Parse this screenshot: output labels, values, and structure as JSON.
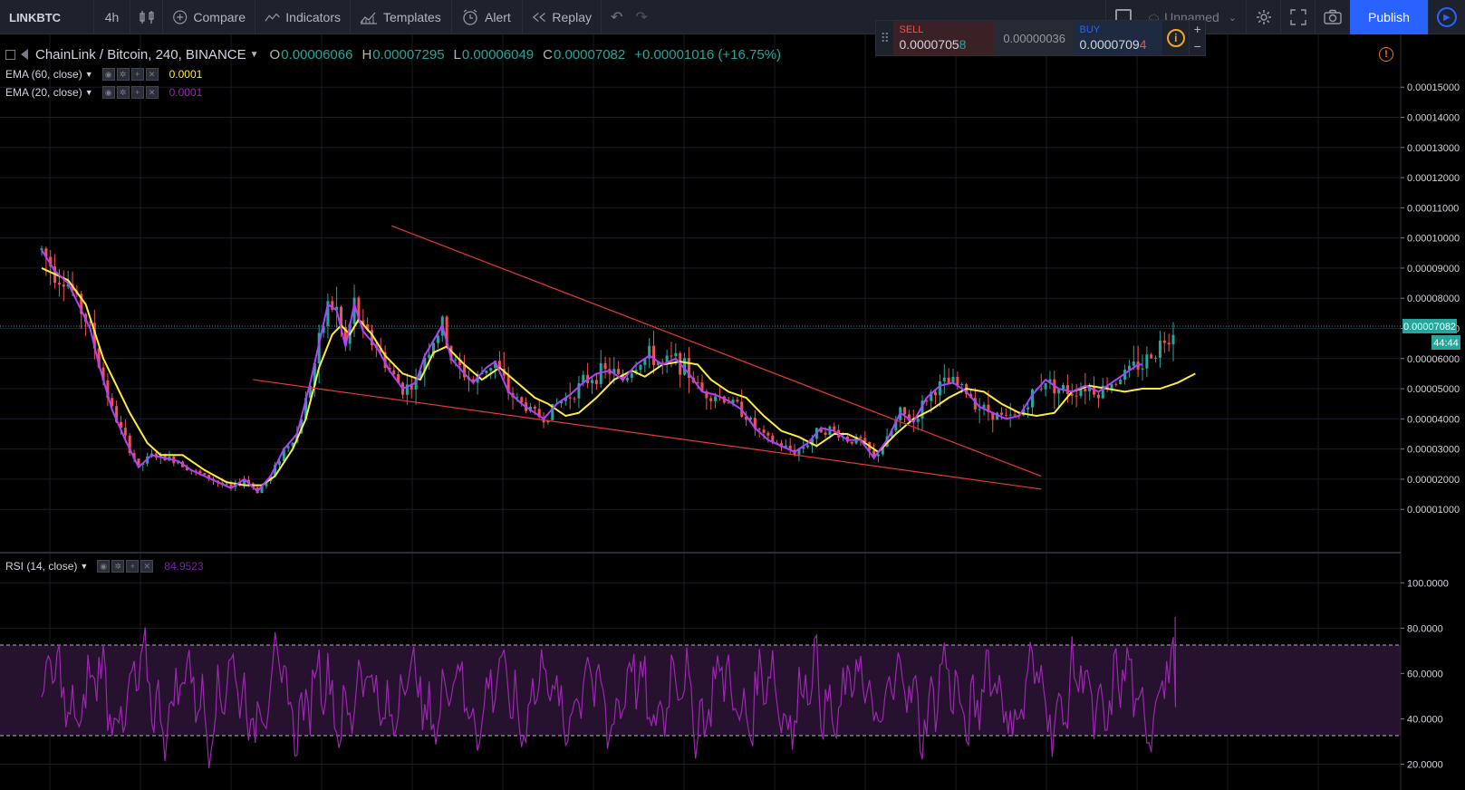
{
  "toolbar": {
    "symbol": "LINKBTC",
    "interval": "4h",
    "compare": "Compare",
    "indicators": "Indicators",
    "templates": "Templates",
    "alert": "Alert",
    "replay": "Replay",
    "layout_name": "Unnamed",
    "publish": "Publish"
  },
  "trade": {
    "sell_label": "SELL",
    "sell_main": "0.0000705",
    "sell_last": "8",
    "spread": "0.00000036",
    "buy_label": "BUY",
    "buy_main": "0.0000709",
    "buy_last": "4",
    "plus": "+",
    "minus": "−"
  },
  "legend": {
    "title": "ChainLink / Bitcoin, 240, BINANCE",
    "o_label": "O",
    "o": "0.00006066",
    "h_label": "H",
    "h": "0.00007295",
    "l_label": "L",
    "l": "0.00006049",
    "c_label": "C",
    "c": "0.00007082",
    "change": "+0.00001016 (+16.75%)"
  },
  "studies": [
    {
      "name": "EMA (60, close)",
      "value": "0.0001",
      "color": "#ffeb3b"
    },
    {
      "name": "EMA (20, close)",
      "value": "0.0001",
      "color": "#9c27b0"
    }
  ],
  "rsi": {
    "name": "RSI (14, close)",
    "value": "84.9523",
    "color": "#9c27b0"
  },
  "colors": {
    "background": "#000000",
    "up": "#26a69a",
    "down": "#ef5350",
    "ema60": "#ffeb3b",
    "ema20": "#b040ff",
    "trendline": "#e53935",
    "rsi": "#9c27b0",
    "last_price": "#26a69a",
    "accent": "#2962ff"
  },
  "price_axis": {
    "ticks": [
      "0.00015000",
      "0.00014000",
      "0.00013000",
      "0.00012000",
      "0.00011000",
      "0.00010000",
      "0.00009000",
      "0.00008000",
      "0.00007000",
      "0.00006000",
      "0.00005000",
      "0.00004000",
      "0.00003000",
      "0.00002000",
      "0.00001000"
    ],
    "last_price": "0.00007082",
    "countdown": "44:44"
  },
  "rsi_axis": {
    "ticks": [
      "100.0000",
      "80.0000",
      "60.0000",
      "40.0000",
      "20.0000"
    ],
    "upper_band": 70,
    "lower_band": 30
  },
  "chart_data": {
    "type": "line",
    "price_ylim": [
      4.65e-06,
      0.00015638
    ],
    "rsi_ylim": [
      13.4,
      107.3
    ],
    "ema60": [
      [
        0,
        9e-05
      ],
      [
        6,
        8.6e-05
      ],
      [
        10,
        7.8e-05
      ],
      [
        14,
        6e-05
      ],
      [
        20,
        4.2e-05
      ],
      [
        24,
        3.2e-05
      ],
      [
        27,
        2.8e-05
      ],
      [
        32,
        2.8e-05
      ],
      [
        37,
        2.3e-05
      ],
      [
        42,
        1.9e-05
      ],
      [
        46,
        1.8e-05
      ],
      [
        50,
        1.8e-05
      ],
      [
        53,
        2.1e-05
      ],
      [
        57,
        3e-05
      ],
      [
        60,
        4e-05
      ],
      [
        63,
        5.7e-05
      ],
      [
        66,
        6.8e-05
      ],
      [
        68,
        7.1e-05
      ],
      [
        70,
        6.8e-05
      ],
      [
        72,
        7.3e-05
      ],
      [
        75,
        6.8e-05
      ],
      [
        78,
        6.1e-05
      ],
      [
        82,
        5.5e-05
      ],
      [
        86,
        5.3e-05
      ],
      [
        89,
        6.2e-05
      ],
      [
        92,
        6.4e-05
      ],
      [
        96,
        5.8e-05
      ],
      [
        100,
        5.3e-05
      ],
      [
        104,
        5.7e-05
      ],
      [
        108,
        5.2e-05
      ],
      [
        112,
        4.7e-05
      ],
      [
        115,
        4.5e-05
      ],
      [
        119,
        4.1e-05
      ],
      [
        122,
        4.2e-05
      ],
      [
        126,
        4.7e-05
      ],
      [
        130,
        5.3e-05
      ],
      [
        134,
        5.6e-05
      ],
      [
        137,
        5.4e-05
      ],
      [
        141,
        5.8e-05
      ],
      [
        145,
        5.9e-05
      ],
      [
        149,
        5.8e-05
      ],
      [
        152,
        5.3e-05
      ],
      [
        156,
        4.9e-05
      ],
      [
        160,
        4.7e-05
      ],
      [
        164,
        4.1e-05
      ],
      [
        168,
        3.6e-05
      ],
      [
        172,
        3.4e-05
      ],
      [
        176,
        3.1e-05
      ],
      [
        180,
        3.5e-05
      ],
      [
        183,
        3.5e-05
      ],
      [
        186,
        3.3e-05
      ],
      [
        190,
        2.9e-05
      ],
      [
        194,
        3.5e-05
      ],
      [
        198,
        4e-05
      ],
      [
        202,
        4.3e-05
      ],
      [
        206,
        4.7e-05
      ],
      [
        210,
        5e-05
      ],
      [
        214,
        4.9e-05
      ],
      [
        218,
        4.5e-05
      ],
      [
        222,
        4.2e-05
      ],
      [
        226,
        4.1e-05
      ],
      [
        230,
        4.2e-05
      ],
      [
        234,
        4.9e-05
      ],
      [
        238,
        5.1e-05
      ],
      [
        242,
        5e-05
      ],
      [
        246,
        4.9e-05
      ],
      [
        250,
        5e-05
      ],
      [
        254,
        5e-05
      ],
      [
        258,
        5.2e-05
      ],
      [
        262,
        5.5e-05
      ]
    ],
    "ema20": [
      [
        0,
        9.6e-05
      ],
      [
        3,
        8.9e-05
      ],
      [
        6,
        8.5e-05
      ],
      [
        8,
        7.9e-05
      ],
      [
        11,
        7e-05
      ],
      [
        13,
        5.8e-05
      ],
      [
        16,
        4.3e-05
      ],
      [
        19,
        3.3e-05
      ],
      [
        22,
        2.4e-05
      ],
      [
        25,
        2.8e-05
      ],
      [
        28,
        2.7e-05
      ],
      [
        31,
        2.6e-05
      ],
      [
        34,
        2.3e-05
      ],
      [
        37,
        2.1e-05
      ],
      [
        40,
        1.9e-05
      ],
      [
        43,
        1.7e-05
      ],
      [
        46,
        2e-05
      ],
      [
        49,
        1.6e-05
      ],
      [
        52,
        2.1e-05
      ],
      [
        55,
        3e-05
      ],
      [
        58,
        3.5e-05
      ],
      [
        61,
        5.2e-05
      ],
      [
        63,
        6.5e-05
      ],
      [
        65,
        7.8e-05
      ],
      [
        67,
        7.6e-05
      ],
      [
        69,
        6.4e-05
      ],
      [
        71,
        7.8e-05
      ],
      [
        73,
        6.9e-05
      ],
      [
        76,
        6.4e-05
      ],
      [
        79,
        5.6e-05
      ],
      [
        82,
        5e-05
      ],
      [
        85,
        5.2e-05
      ],
      [
        87,
        6.1e-05
      ],
      [
        89,
        6.6e-05
      ],
      [
        91,
        7.1e-05
      ],
      [
        93,
        6e-05
      ],
      [
        96,
        5.5e-05
      ],
      [
        98,
        5.2e-05
      ],
      [
        101,
        5.7e-05
      ],
      [
        103,
        5.9e-05
      ],
      [
        106,
        4.9e-05
      ],
      [
        109,
        4.5e-05
      ],
      [
        112,
        4.2e-05
      ],
      [
        114,
        4e-05
      ],
      [
        117,
        4.5e-05
      ],
      [
        120,
        4.8e-05
      ],
      [
        123,
        5.2e-05
      ],
      [
        126,
        5.5e-05
      ],
      [
        129,
        5.6e-05
      ],
      [
        132,
        5.3e-05
      ],
      [
        135,
        5.8e-05
      ],
      [
        138,
        6.1e-05
      ],
      [
        141,
        5.8e-05
      ],
      [
        144,
        6e-05
      ],
      [
        147,
        5.5e-05
      ],
      [
        150,
        4.9e-05
      ],
      [
        153,
        4.8e-05
      ],
      [
        156,
        4.6e-05
      ],
      [
        159,
        4.3e-05
      ],
      [
        162,
        3.7e-05
      ],
      [
        165,
        3.3e-05
      ],
      [
        168,
        3.1e-05
      ],
      [
        171,
        2.9e-05
      ],
      [
        174,
        3.2e-05
      ],
      [
        177,
        3.7e-05
      ],
      [
        180,
        3.6e-05
      ],
      [
        183,
        3.3e-05
      ],
      [
        186,
        3.3e-05
      ],
      [
        189,
        2.7e-05
      ],
      [
        192,
        3.3e-05
      ],
      [
        195,
        4.2e-05
      ],
      [
        198,
        3.9e-05
      ],
      [
        201,
        4.7e-05
      ],
      [
        204,
        5.1e-05
      ],
      [
        207,
        5.2e-05
      ],
      [
        210,
        4.9e-05
      ],
      [
        213,
        4.4e-05
      ],
      [
        216,
        4.2e-05
      ],
      [
        219,
        4e-05
      ],
      [
        222,
        4.1e-05
      ],
      [
        225,
        4.8e-05
      ],
      [
        228,
        5.3e-05
      ],
      [
        231,
        5e-05
      ],
      [
        234,
        4.9e-05
      ],
      [
        237,
        5.1e-05
      ],
      [
        240,
        4.9e-05
      ],
      [
        243,
        5.2e-05
      ],
      [
        246,
        5.5e-05
      ],
      [
        249,
        5.8e-05
      ],
      [
        250,
        5.8e-05
      ]
    ],
    "trendlines": [
      {
        "from": [
          79.5,
          0.000104
        ],
        "to": [
          227,
          2.1e-05
        ]
      },
      {
        "from": [
          48,
          5.3e-05
        ],
        "to": [
          227,
          1.67e-05
        ]
      }
    ],
    "last_price": 7.082e-05
  }
}
